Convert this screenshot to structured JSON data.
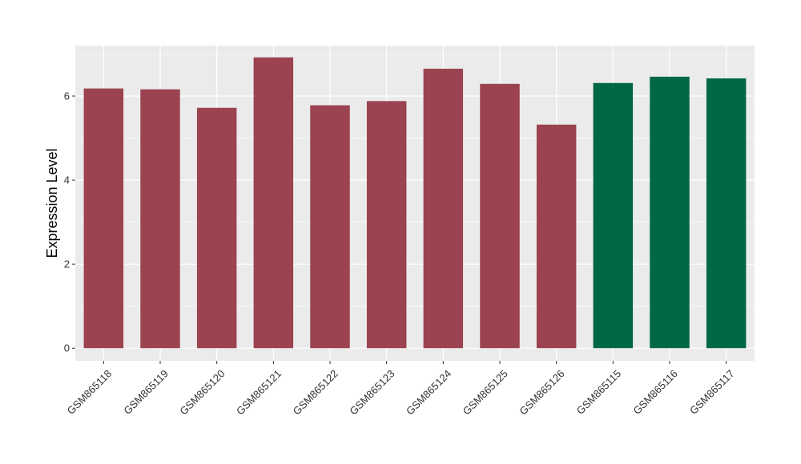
{
  "chart_data": {
    "type": "bar",
    "title": "",
    "xlabel": "",
    "ylabel": "Expression Level",
    "ylim": [
      -0.3,
      7.2
    ],
    "yticks": [
      0,
      2,
      4,
      6
    ],
    "grid": true,
    "legend": "none",
    "categories": [
      "GSM865118",
      "GSM865119",
      "GSM865120",
      "GSM865121",
      "GSM865122",
      "GSM865123",
      "GSM865124",
      "GSM865125",
      "GSM865126",
      "GSM865115",
      "GSM865116",
      "GSM865117"
    ],
    "values": [
      6.18,
      6.16,
      5.72,
      6.92,
      5.78,
      5.88,
      6.65,
      6.29,
      5.32,
      6.31,
      6.46,
      6.42
    ],
    "colors": [
      "#9b4350",
      "#9b4350",
      "#9b4350",
      "#9b4350",
      "#9b4350",
      "#9b4350",
      "#9b4350",
      "#9b4350",
      "#9b4350",
      "#006843",
      "#006843",
      "#006843"
    ],
    "panel_background": "#ebebeb",
    "grid_color": "#ffffff"
  }
}
